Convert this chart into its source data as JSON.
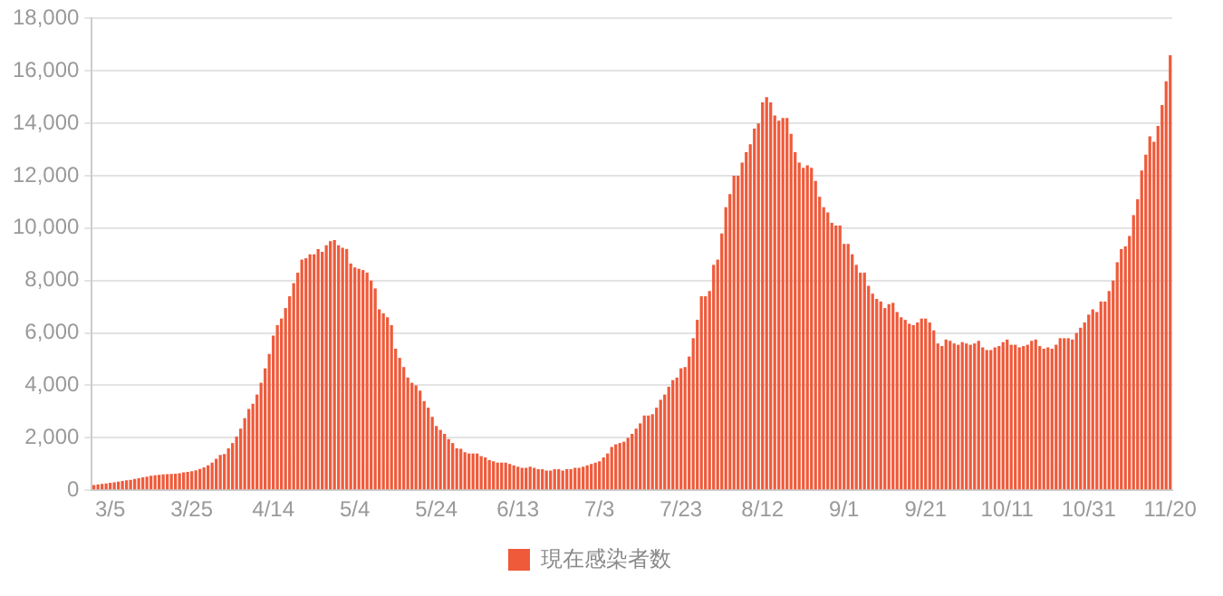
{
  "chart_data": {
    "type": "bar",
    "categories": [
      null,
      null,
      null,
      null,
      "3/5",
      null,
      null,
      null,
      null,
      null,
      null,
      null,
      null,
      null,
      null,
      null,
      null,
      null,
      null,
      null,
      null,
      null,
      null,
      null,
      "3/25",
      null,
      null,
      null,
      null,
      null,
      null,
      null,
      null,
      null,
      null,
      null,
      null,
      null,
      null,
      null,
      null,
      null,
      null,
      null,
      "4/14",
      null,
      null,
      null,
      null,
      null,
      null,
      null,
      null,
      null,
      null,
      null,
      null,
      null,
      null,
      null,
      null,
      null,
      null,
      null,
      "5/4",
      null,
      null,
      null,
      null,
      null,
      null,
      null,
      null,
      null,
      null,
      null,
      null,
      null,
      null,
      null,
      null,
      null,
      null,
      null,
      "5/24",
      null,
      null,
      null,
      null,
      null,
      null,
      null,
      null,
      null,
      null,
      null,
      null,
      null,
      null,
      null,
      null,
      null,
      null,
      null,
      "6/13",
      null,
      null,
      null,
      null,
      null,
      null,
      null,
      null,
      null,
      null,
      null,
      null,
      null,
      null,
      null,
      null,
      null,
      null,
      null,
      "7/3",
      null,
      null,
      null,
      null,
      null,
      null,
      null,
      null,
      null,
      null,
      null,
      null,
      null,
      null,
      null,
      null,
      null,
      null,
      null,
      "7/23",
      null,
      null,
      null,
      null,
      null,
      null,
      null,
      null,
      null,
      null,
      null,
      null,
      null,
      null,
      null,
      null,
      null,
      null,
      null,
      "8/12",
      null,
      null,
      null,
      null,
      null,
      null,
      null,
      null,
      null,
      null,
      null,
      null,
      null,
      null,
      null,
      null,
      null,
      null,
      null,
      "9/1",
      null,
      null,
      null,
      null,
      null,
      null,
      null,
      null,
      null,
      null,
      null,
      null,
      null,
      null,
      null,
      null,
      null,
      null,
      null,
      "9/21",
      null,
      null,
      null,
      null,
      null,
      null,
      null,
      null,
      null,
      null,
      null,
      null,
      null,
      null,
      null,
      null,
      null,
      null,
      null,
      "10/11",
      null,
      null,
      null,
      null,
      null,
      null,
      null,
      null,
      null,
      null,
      null,
      null,
      null,
      null,
      null,
      null,
      null,
      null,
      null,
      "10/31",
      null,
      null,
      null,
      null,
      null,
      null,
      null,
      null,
      null,
      null,
      null,
      null,
      null,
      null,
      null,
      null,
      null,
      null,
      null,
      "11/20"
    ],
    "series": [
      {
        "name": "現在感染者数",
        "color": "#ef5a3a",
        "values": [
          200,
          220,
          240,
          260,
          280,
          300,
          330,
          350,
          380,
          400,
          430,
          460,
          490,
          520,
          550,
          570,
          590,
          600,
          610,
          620,
          630,
          650,
          680,
          700,
          720,
          760,
          810,
          870,
          950,
          1050,
          1200,
          1350,
          1380,
          1600,
          1800,
          2050,
          2350,
          2750,
          3100,
          3300,
          3650,
          4100,
          4650,
          5200,
          5900,
          6300,
          6550,
          6950,
          7400,
          7900,
          8300,
          8800,
          8850,
          9000,
          9000,
          9200,
          9100,
          9350,
          9500,
          9550,
          9350,
          9250,
          9200,
          8650,
          8500,
          8450,
          8400,
          8300,
          8000,
          7700,
          6900,
          6750,
          6600,
          6300,
          5400,
          5050,
          4700,
          4300,
          4100,
          4000,
          3800,
          3400,
          3150,
          2800,
          2450,
          2300,
          2150,
          1950,
          1800,
          1600,
          1580,
          1450,
          1400,
          1400,
          1400,
          1300,
          1250,
          1150,
          1100,
          1050,
          1050,
          1050,
          1000,
          950,
          900,
          850,
          850,
          900,
          850,
          800,
          800,
          750,
          750,
          800,
          800,
          750,
          800,
          800,
          850,
          850,
          900,
          950,
          1000,
          1050,
          1100,
          1250,
          1400,
          1650,
          1750,
          1800,
          1850,
          2000,
          2150,
          2350,
          2550,
          2850,
          2850,
          2900,
          3150,
          3450,
          3650,
          3950,
          4200,
          4300,
          4650,
          4700,
          5100,
          5800,
          6500,
          7400,
          7400,
          7600,
          8600,
          8800,
          9800,
          10800,
          11300,
          12000,
          12000,
          12500,
          12900,
          13200,
          13800,
          14000,
          14800,
          15000,
          14800,
          14300,
          14100,
          14200,
          14200,
          13600,
          12900,
          12500,
          12300,
          12400,
          12300,
          11800,
          11200,
          10800,
          10600,
          10200,
          10100,
          10100,
          9400,
          9400,
          9000,
          8600,
          8300,
          8300,
          7800,
          7500,
          7300,
          7200,
          6950,
          7100,
          7150,
          6800,
          6600,
          6500,
          6350,
          6300,
          6400,
          6550,
          6550,
          6400,
          6100,
          5600,
          5500,
          5750,
          5700,
          5600,
          5550,
          5650,
          5600,
          5550,
          5600,
          5700,
          5450,
          5350,
          5350,
          5450,
          5500,
          5650,
          5750,
          5550,
          5550,
          5450,
          5500,
          5550,
          5700,
          5750,
          5500,
          5400,
          5450,
          5400,
          5550,
          5800,
          5800,
          5800,
          5750,
          6000,
          6200,
          6400,
          6700,
          6900,
          6800,
          7200,
          7200,
          7600,
          8000,
          8700,
          9200,
          9300,
          9700,
          10500,
          11100,
          12200,
          12800,
          13500,
          13300,
          13900,
          14700,
          15600,
          16600
        ]
      }
    ],
    "ylim": [
      0,
      18000
    ],
    "yticks": [
      0,
      {
        "value": 2000,
        "label": "2,000"
      },
      {
        "value": 4000,
        "label": "4,000"
      },
      {
        "value": 6000,
        "label": "6,000"
      },
      {
        "value": 8000,
        "label": "8,000"
      },
      {
        "value": 10000,
        "label": "10,000"
      },
      {
        "value": 12000,
        "label": "12,000"
      },
      {
        "value": 14000,
        "label": "14,000"
      },
      {
        "value": 16000,
        "label": "16,000"
      },
      {
        "value": 18000,
        "label": "18,000"
      }
    ],
    "grid": "y",
    "legend": "bottom"
  }
}
